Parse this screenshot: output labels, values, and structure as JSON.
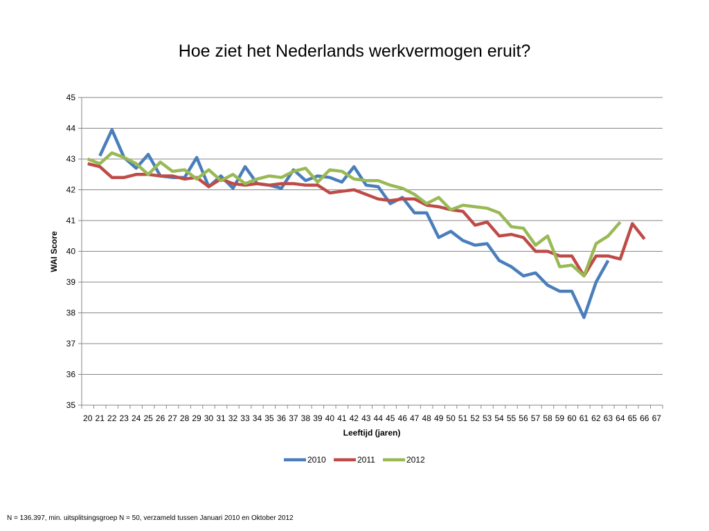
{
  "footnote": "N = 136.397, min. uitsplitsingsgroep N = 50, verzameld tussen Januari 2010 en Oktober 2012",
  "chart_data": {
    "type": "line",
    "title": "Hoe ziet het Nederlands werkvermogen eruit?",
    "xlabel": "Leeftijd (jaren)",
    "ylabel": "WAI Score",
    "ylim": [
      35,
      45
    ],
    "yticks": [
      35,
      36,
      37,
      38,
      39,
      40,
      41,
      42,
      43,
      44,
      45
    ],
    "grid": true,
    "legend_position": "bottom",
    "x": [
      20,
      21,
      22,
      23,
      24,
      25,
      26,
      27,
      28,
      29,
      30,
      31,
      32,
      33,
      34,
      35,
      36,
      37,
      38,
      39,
      40,
      41,
      42,
      43,
      44,
      45,
      46,
      47,
      48,
      49,
      50,
      51,
      52,
      53,
      54,
      55,
      56,
      57,
      58,
      59,
      60,
      61,
      62,
      63,
      64,
      65,
      66,
      67
    ],
    "series": [
      {
        "name": "2010",
        "color": "#4a7ebb",
        "values": [
          null,
          43.1,
          43.95,
          43.05,
          42.7,
          43.15,
          42.45,
          42.4,
          42.4,
          43.05,
          42.1,
          42.45,
          42.05,
          42.75,
          42.2,
          42.15,
          42.05,
          42.65,
          42.3,
          42.45,
          42.4,
          42.25,
          42.75,
          42.15,
          42.1,
          41.55,
          41.75,
          41.25,
          41.25,
          40.45,
          40.65,
          40.35,
          40.2,
          40.25,
          39.7,
          39.5,
          39.2,
          39.3,
          38.9,
          38.7,
          38.7,
          37.85,
          39.0,
          39.7,
          null,
          null,
          null,
          null
        ]
      },
      {
        "name": "2011",
        "color": "#be4b48",
        "values": [
          42.85,
          42.75,
          42.4,
          42.4,
          42.5,
          42.5,
          42.45,
          42.45,
          42.35,
          42.4,
          42.1,
          42.35,
          42.2,
          42.15,
          42.2,
          42.15,
          42.2,
          42.2,
          42.15,
          42.15,
          41.9,
          41.95,
          42.0,
          41.85,
          41.7,
          41.65,
          41.7,
          41.7,
          41.5,
          41.45,
          41.35,
          41.3,
          40.85,
          40.95,
          40.5,
          40.55,
          40.45,
          40.0,
          40.0,
          39.85,
          39.85,
          39.2,
          39.85,
          39.85,
          39.75,
          40.9,
          40.4,
          null
        ]
      },
      {
        "name": "2012",
        "color": "#98b954",
        "values": [
          43.0,
          42.85,
          43.2,
          43.05,
          42.85,
          42.5,
          42.9,
          42.6,
          42.65,
          42.35,
          42.65,
          42.3,
          42.5,
          42.2,
          42.35,
          42.45,
          42.4,
          42.6,
          42.7,
          42.25,
          42.65,
          42.6,
          42.35,
          42.3,
          42.3,
          42.15,
          42.05,
          41.85,
          41.55,
          41.75,
          41.35,
          41.5,
          41.45,
          41.4,
          41.25,
          40.8,
          40.75,
          40.2,
          40.5,
          39.5,
          39.55,
          39.2,
          40.25,
          40.5,
          40.95,
          null,
          null,
          null
        ]
      }
    ]
  }
}
